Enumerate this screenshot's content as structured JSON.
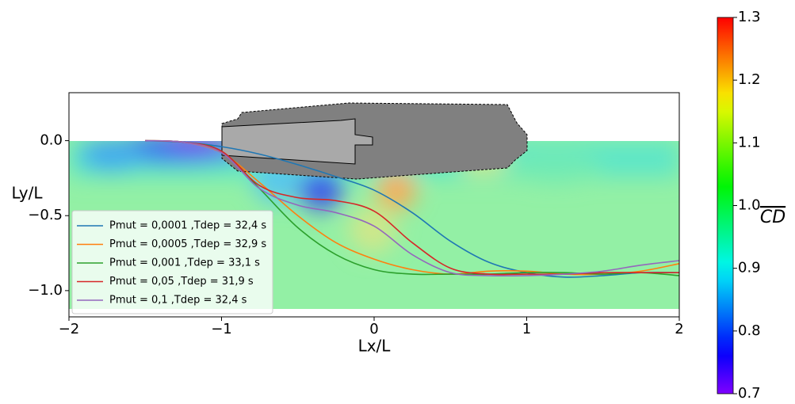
{
  "chart_data": {
    "type": "line",
    "xlabel": "Lx/L",
    "ylabel": "Ly/L",
    "x": [
      -1.5,
      -1.25,
      -1,
      -0.75,
      -0.5,
      -0.25,
      0,
      0.25,
      0.5,
      0.75,
      1,
      1.25,
      1.5,
      1.75,
      2
    ],
    "series": [
      {
        "name": "Pmut = 0,0001 ,Tdep = 32,4 s",
        "color": "#1f77b4",
        "values": [
          0,
          -0.01,
          -0.04,
          -0.09,
          -0.16,
          -0.24,
          -0.33,
          -0.48,
          -0.67,
          -0.81,
          -0.88,
          -0.91,
          -0.9,
          -0.88,
          -0.88
        ]
      },
      {
        "name": "Pmut = 0,0005 ,Tdep = 32,9 s",
        "color": "#ff7f0e",
        "values": [
          0,
          -0.01,
          -0.08,
          -0.28,
          -0.5,
          -0.68,
          -0.79,
          -0.86,
          -0.89,
          -0.87,
          -0.87,
          -0.89,
          -0.89,
          -0.87,
          -0.82
        ]
      },
      {
        "name": "Pmut = 0,001 ,Tdep = 33,1 s",
        "color": "#2ca02c",
        "values": [
          0,
          -0.01,
          -0.07,
          -0.32,
          -0.58,
          -0.76,
          -0.86,
          -0.89,
          -0.89,
          -0.89,
          -0.88,
          -0.88,
          -0.89,
          -0.88,
          -0.9
        ]
      },
      {
        "name": "Pmut = 0,05 ,Tdep = 31,9 s",
        "color": "#d62728",
        "values": [
          0,
          -0.01,
          -0.07,
          -0.3,
          -0.38,
          -0.4,
          -0.47,
          -0.68,
          -0.85,
          -0.89,
          -0.89,
          -0.89,
          -0.88,
          -0.88,
          -0.88
        ]
      },
      {
        "name": "Pmut = 0,1 ,Tdep = 32,4 s",
        "color": "#9467bd",
        "values": [
          0,
          -0.01,
          -0.08,
          -0.32,
          -0.43,
          -0.48,
          -0.57,
          -0.76,
          -0.88,
          -0.9,
          -0.9,
          -0.89,
          -0.87,
          -0.83,
          -0.8
        ]
      }
    ],
    "xlim": [
      -2,
      2
    ],
    "xticks": [
      {
        "value": -2,
        "label": "−2"
      },
      {
        "value": -1,
        "label": "−1"
      },
      0,
      1,
      2
    ],
    "ylim": [
      -1.175,
      0.32
    ],
    "yticks": [
      {
        "value": 0,
        "label": "0.0"
      },
      {
        "value": -0.5,
        "label": "−0.5"
      },
      {
        "value": -1,
        "label": "−1.0"
      }
    ],
    "legend": "lower left",
    "colorbar": {
      "label": "CD",
      "colormap": "rainbow",
      "lim": [
        0.7,
        1.3
      ],
      "ticks": [
        0.7,
        0.8,
        0.9,
        {
          "value": 1,
          "label": "1.0"
        },
        1.1,
        1.2,
        1.3
      ]
    }
  }
}
